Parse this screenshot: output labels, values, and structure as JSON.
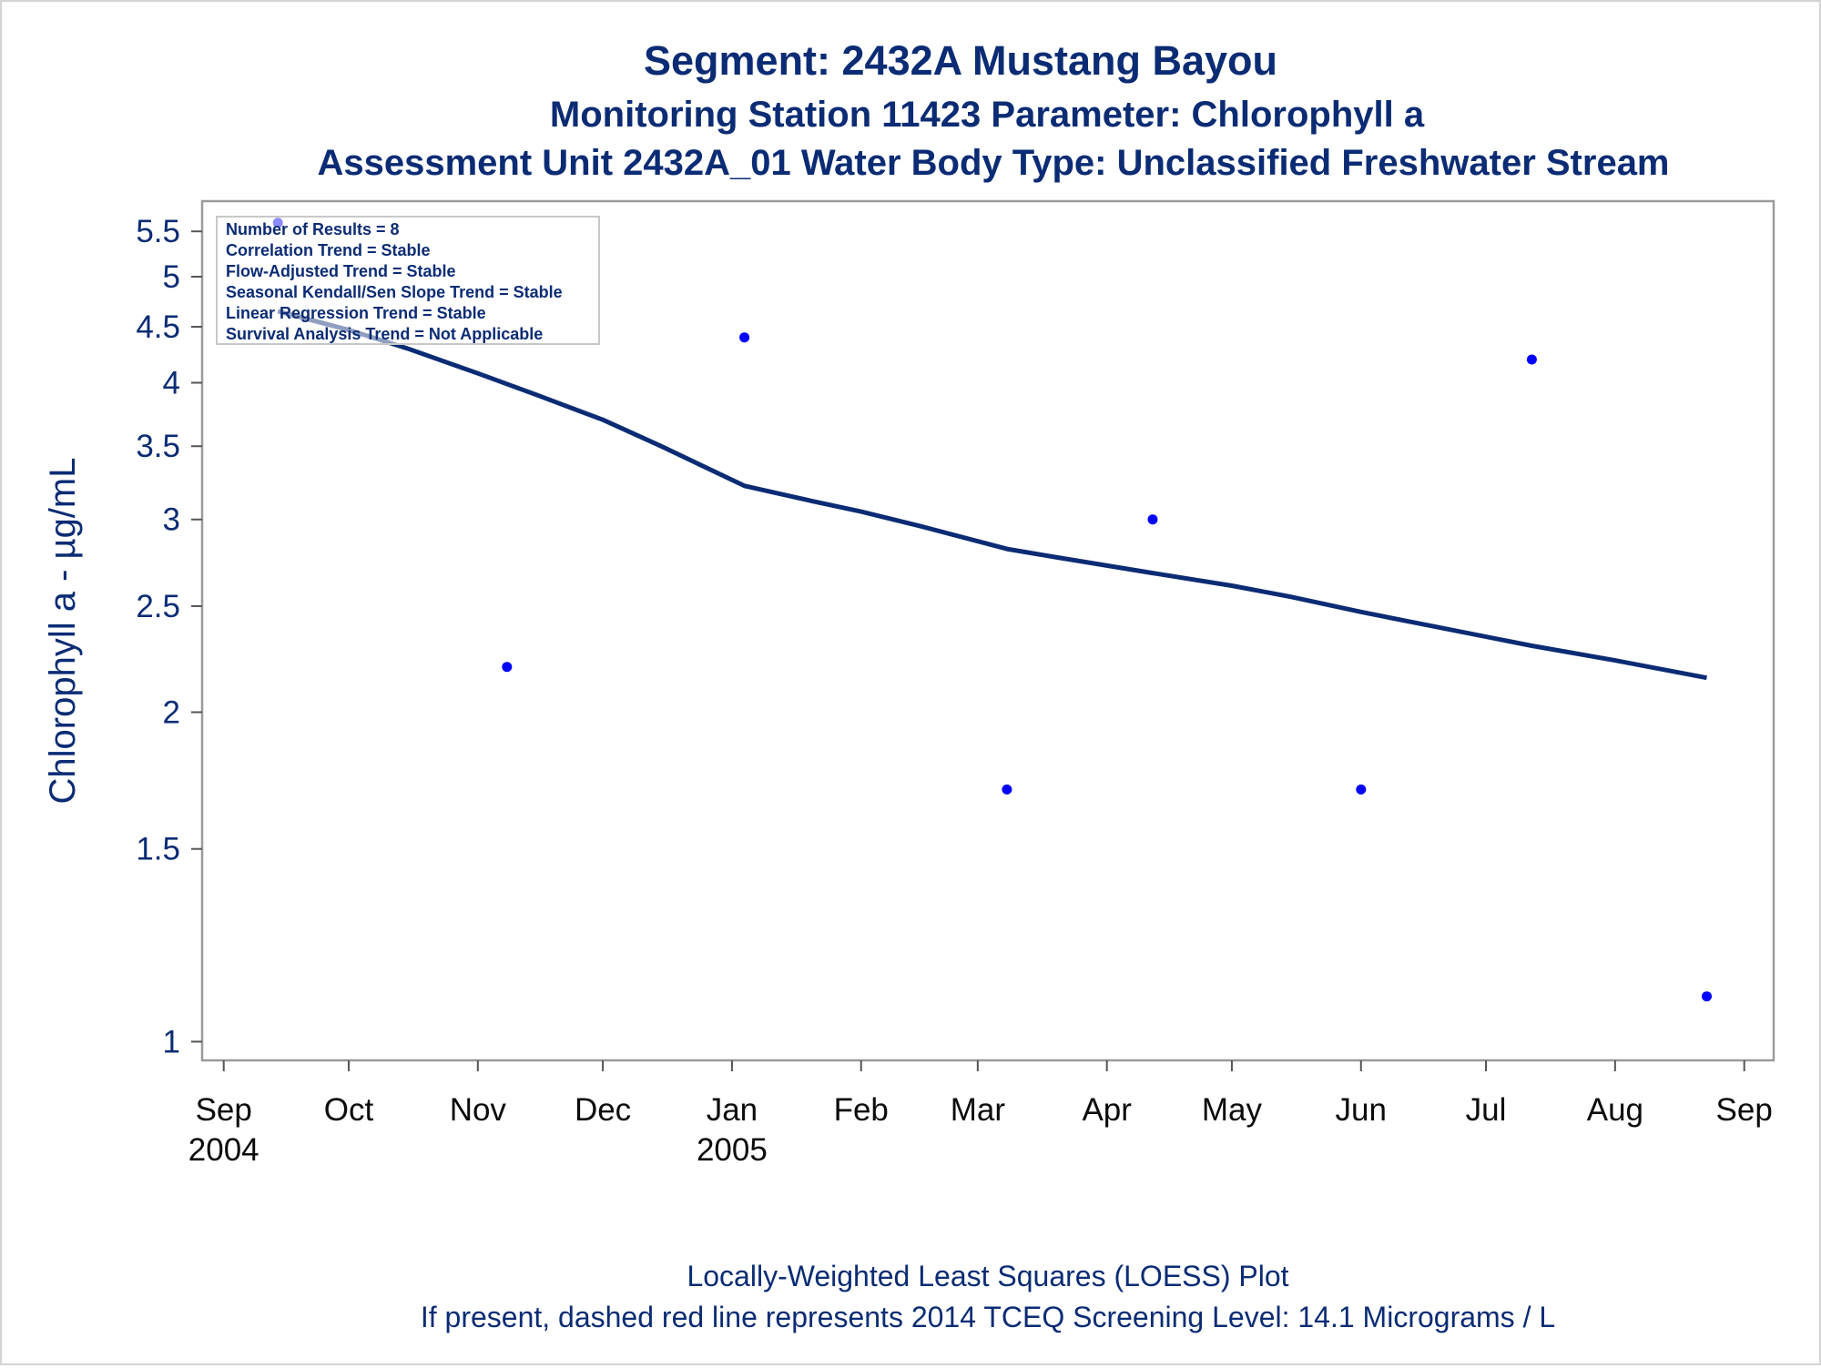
{
  "titles": {
    "line1": "Segment: 2432A  Mustang Bayou",
    "line2": "Monitoring Station 11423 Parameter: Chlorophyll a",
    "line3": "Assessment Unit 2432A_01   Water Body Type: Unclassified Freshwater Stream"
  },
  "inset": {
    "lines": [
      "Number of Results = 8",
      "Correlation Trend = Stable",
      "Flow-Adjusted Trend = Stable",
      "Seasonal Kendall/Sen Slope Trend = Stable",
      "Linear Regression Trend = Stable",
      "Survival Analysis Trend = Not Applicable"
    ]
  },
  "footnotes": {
    "line1": "Locally-Weighted Least Squares (LOESS) Plot",
    "line2": "If present, dashed red line represents 2014 TCEQ Screening Level: 14.1 Micrograms / L"
  },
  "chart_data": {
    "type": "scatter",
    "title": "Segment: 2432A  Mustang Bayou",
    "subtitle": "Monitoring Station 11423 Parameter: Chlorophyll a",
    "xlabel": "",
    "ylabel": "Chlorophyll a -  µg/mL",
    "yscale": "log",
    "ylim": [
      0.98,
      5.75
    ],
    "xlim": [
      "2004-08-29",
      "2005-09-05"
    ],
    "grid": false,
    "legend": "none",
    "x_ticks": [
      {
        "date": "2004-09-01",
        "month": "Sep",
        "year": "2004"
      },
      {
        "date": "2004-10-01",
        "month": "Oct",
        "year": ""
      },
      {
        "date": "2004-11-01",
        "month": "Nov",
        "year": ""
      },
      {
        "date": "2004-12-01",
        "month": "Dec",
        "year": ""
      },
      {
        "date": "2005-01-01",
        "month": "Jan",
        "year": "2005"
      },
      {
        "date": "2005-02-01",
        "month": "Feb",
        "year": ""
      },
      {
        "date": "2005-03-01",
        "month": "Mar",
        "year": ""
      },
      {
        "date": "2005-04-01",
        "month": "Apr",
        "year": ""
      },
      {
        "date": "2005-05-01",
        "month": "May",
        "year": ""
      },
      {
        "date": "2005-06-01",
        "month": "Jun",
        "year": ""
      },
      {
        "date": "2005-07-01",
        "month": "Jul",
        "year": ""
      },
      {
        "date": "2005-08-01",
        "month": "Aug",
        "year": ""
      },
      {
        "date": "2005-09-01",
        "month": "Sep",
        "year": ""
      }
    ],
    "y_ticks": [
      {
        "value": 1,
        "label": "1"
      },
      {
        "value": 1.5,
        "label": "1.5"
      },
      {
        "value": 2,
        "label": "2"
      },
      {
        "value": 2.5,
        "label": "2.5"
      },
      {
        "value": 3,
        "label": "3"
      },
      {
        "value": 3.5,
        "label": "3.5"
      },
      {
        "value": 4,
        "label": "4"
      },
      {
        "value": 4.5,
        "label": "4.5"
      },
      {
        "value": 5,
        "label": "5"
      },
      {
        "value": 5.5,
        "label": "5.5"
      }
    ],
    "series": [
      {
        "kind": "points",
        "color": "#0000ff",
        "points": [
          {
            "x": "2004-09-14",
            "y": 5.6
          },
          {
            "x": "2004-11-08",
            "y": 2.2
          },
          {
            "x": "2005-01-04",
            "y": 4.4
          },
          {
            "x": "2005-03-08",
            "y": 1.7
          },
          {
            "x": "2005-04-12",
            "y": 3.0
          },
          {
            "x": "2005-06-01",
            "y": 1.7
          },
          {
            "x": "2005-07-12",
            "y": 4.2
          },
          {
            "x": "2005-08-23",
            "y": 1.1
          }
        ]
      },
      {
        "kind": "line",
        "color": "#0b2c74",
        "points": [
          {
            "x": "2004-09-14",
            "y": 4.65
          },
          {
            "x": "2004-10-01",
            "y": 4.47
          },
          {
            "x": "2004-10-15",
            "y": 4.3
          },
          {
            "x": "2004-11-01",
            "y": 4.08
          },
          {
            "x": "2004-11-15",
            "y": 3.9
          },
          {
            "x": "2004-12-01",
            "y": 3.7
          },
          {
            "x": "2004-12-15",
            "y": 3.5
          },
          {
            "x": "2005-01-04",
            "y": 3.22
          },
          {
            "x": "2005-01-20",
            "y": 3.12
          },
          {
            "x": "2005-02-01",
            "y": 3.05
          },
          {
            "x": "2005-02-15",
            "y": 2.96
          },
          {
            "x": "2005-03-08",
            "y": 2.82
          },
          {
            "x": "2005-03-20",
            "y": 2.77
          },
          {
            "x": "2005-04-12",
            "y": 2.68
          },
          {
            "x": "2005-05-01",
            "y": 2.61
          },
          {
            "x": "2005-05-15",
            "y": 2.55
          },
          {
            "x": "2005-06-01",
            "y": 2.47
          },
          {
            "x": "2005-06-15",
            "y": 2.41
          },
          {
            "x": "2005-07-12",
            "y": 2.3
          },
          {
            "x": "2005-08-01",
            "y": 2.23
          },
          {
            "x": "2005-08-23",
            "y": 2.15
          }
        ]
      }
    ]
  }
}
